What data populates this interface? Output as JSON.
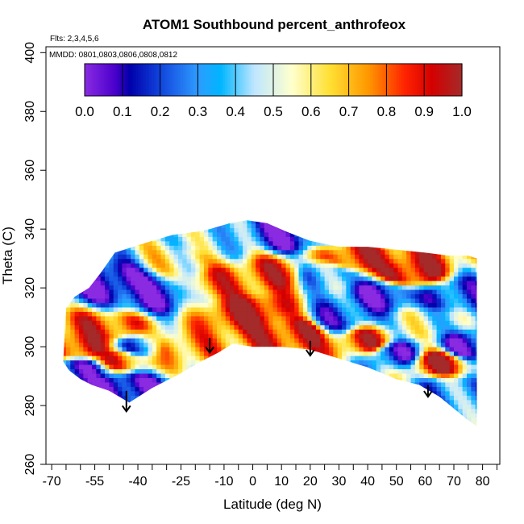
{
  "chart_data": {
    "type": "heatmap",
    "title": "ATOM1 Southbound percent_anthrofeox",
    "subtitle_flights": "Flts: 2,3,4,5,6",
    "subtitle_dates": "MMDD: 0801,0803,0806,0808,0812",
    "xlabel": "Latitude (deg N)",
    "ylabel": "Theta (C)",
    "xlim": [
      -72,
      86
    ],
    "ylim": [
      260,
      402
    ],
    "xticks": [
      -70,
      -55,
      -40,
      -25,
      -10,
      0,
      10,
      20,
      30,
      40,
      50,
      60,
      70,
      80
    ],
    "xtick_labels": [
      "-70",
      "-55",
      "-40",
      "-25",
      "-10",
      "0",
      "10",
      "20",
      "30",
      "40",
      "50",
      "60",
      "70",
      "80"
    ],
    "xticks_minor": [
      -65,
      -60,
      -50,
      -45,
      -35,
      -30,
      -20,
      -15,
      -5,
      5,
      15,
      25,
      35,
      45,
      55,
      65,
      75,
      85
    ],
    "yticks": [
      260,
      280,
      300,
      320,
      340,
      360,
      380,
      400
    ],
    "ytick_labels": [
      "260",
      "280",
      "300",
      "320",
      "340",
      "360",
      "380",
      "400"
    ],
    "colorbar": {
      "range": [
        0.0,
        1.0
      ],
      "tick_labels": [
        "0.0",
        "0.1",
        "0.2",
        "0.3",
        "0.4",
        "0.5",
        "0.6",
        "0.7",
        "0.8",
        "0.9",
        "1.0"
      ],
      "stops": [
        {
          "v": 0.0,
          "c": "#8A2BE2"
        },
        {
          "v": 0.08,
          "c": "#4B00CC"
        },
        {
          "v": 0.12,
          "c": "#0000AA"
        },
        {
          "v": 0.2,
          "c": "#1144DD"
        },
        {
          "v": 0.3,
          "c": "#2E9BFF"
        },
        {
          "v": 0.36,
          "c": "#00B5FF"
        },
        {
          "v": 0.45,
          "c": "#BFE6FF"
        },
        {
          "v": 0.55,
          "c": "#FFFFCC"
        },
        {
          "v": 0.65,
          "c": "#FFE033"
        },
        {
          "v": 0.75,
          "c": "#FF9900"
        },
        {
          "v": 0.85,
          "c": "#FF2200"
        },
        {
          "v": 0.92,
          "c": "#D40000"
        },
        {
          "v": 1.0,
          "c": "#A52A2A"
        }
      ]
    },
    "boundary_top": [
      [
        -65,
        313
      ],
      [
        -62,
        317
      ],
      [
        -57,
        320
      ],
      [
        -53,
        325
      ],
      [
        -48,
        332
      ],
      [
        -35,
        336
      ],
      [
        -28,
        338
      ],
      [
        -20,
        339
      ],
      [
        -15,
        340
      ],
      [
        -8,
        342
      ],
      [
        -2,
        343
      ],
      [
        5,
        342
      ],
      [
        12,
        339
      ],
      [
        20,
        336
      ],
      [
        30,
        334
      ],
      [
        40,
        334
      ],
      [
        50,
        333
      ],
      [
        60,
        332
      ],
      [
        68,
        331
      ],
      [
        75,
        331
      ],
      [
        78,
        330
      ]
    ],
    "boundary_bottom": [
      [
        78,
        273
      ],
      [
        75,
        275
      ],
      [
        70,
        279
      ],
      [
        65,
        283
      ],
      [
        58,
        287
      ],
      [
        50,
        289
      ],
      [
        40,
        293
      ],
      [
        30,
        296
      ],
      [
        20,
        299
      ],
      [
        10,
        300
      ],
      [
        0,
        300
      ],
      [
        -7,
        301
      ],
      [
        -12,
        298
      ],
      [
        -18,
        295
      ],
      [
        -25,
        291
      ],
      [
        -35,
        286
      ],
      [
        -43,
        281
      ],
      [
        -50,
        285
      ],
      [
        -56,
        287
      ],
      [
        -60,
        289
      ],
      [
        -64,
        292
      ],
      [
        -66,
        295
      ]
    ],
    "field_anchors": [
      {
        "x": -50,
        "y": 322,
        "v": 0.05
      },
      {
        "x": -35,
        "y": 318,
        "v": 0.1
      },
      {
        "x": -60,
        "y": 300,
        "v": 0.9
      },
      {
        "x": -50,
        "y": 306,
        "v": 0.85
      },
      {
        "x": -40,
        "y": 300,
        "v": 0.3
      },
      {
        "x": -60,
        "y": 292,
        "v": 0.15
      },
      {
        "x": -45,
        "y": 296,
        "v": 0.8
      },
      {
        "x": -25,
        "y": 300,
        "v": 0.75
      },
      {
        "x": -45,
        "y": 287,
        "v": 0.05
      },
      {
        "x": -25,
        "y": 330,
        "v": 0.6
      },
      {
        "x": -15,
        "y": 335,
        "v": 0.45
      },
      {
        "x": -10,
        "y": 322,
        "v": 0.8
      },
      {
        "x": 0,
        "y": 312,
        "v": 0.95
      },
      {
        "x": 8,
        "y": 325,
        "v": 0.85
      },
      {
        "x": 12,
        "y": 338,
        "v": 0.1
      },
      {
        "x": 15,
        "y": 305,
        "v": 0.9
      },
      {
        "x": 25,
        "y": 325,
        "v": 0.3
      },
      {
        "x": 30,
        "y": 310,
        "v": 0.2
      },
      {
        "x": 35,
        "y": 330,
        "v": 0.9
      },
      {
        "x": 40,
        "y": 302,
        "v": 0.85
      },
      {
        "x": 45,
        "y": 318,
        "v": 0.1
      },
      {
        "x": 50,
        "y": 298,
        "v": 0.15
      },
      {
        "x": 55,
        "y": 325,
        "v": 0.95
      },
      {
        "x": 60,
        "y": 308,
        "v": 0.5
      },
      {
        "x": 65,
        "y": 295,
        "v": 0.9
      },
      {
        "x": 70,
        "y": 318,
        "v": 0.2
      },
      {
        "x": 75,
        "y": 300,
        "v": 0.1
      },
      {
        "x": 68,
        "y": 285,
        "v": 0.3
      }
    ],
    "profile_arrows": [
      {
        "x": -44,
        "y_from": 285,
        "y_to": 278
      },
      {
        "x": -15,
        "y_from": 303,
        "y_to": 298
      },
      {
        "x": 20,
        "y_from": 302,
        "y_to": 297
      },
      {
        "x": 61,
        "y_from": 287,
        "y_to": 283
      }
    ]
  }
}
